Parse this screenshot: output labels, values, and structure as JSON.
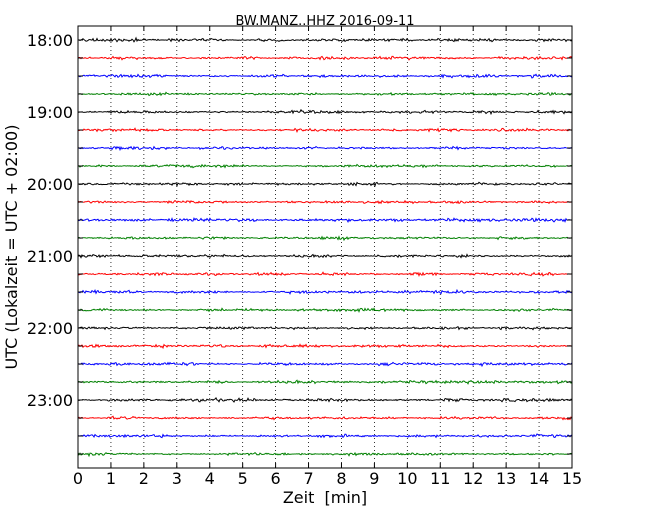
{
  "chart_data": {
    "type": "line",
    "title": "BW.MANZ..HHZ 2016-09-11",
    "xlabel": "Zeit  [min]",
    "ylabel": "UTC (Lokalzeit = UTC + 02:00)",
    "xlim": [
      0,
      15
    ],
    "x_ticks": [
      "0",
      "1",
      "2",
      "3",
      "4",
      "5",
      "6",
      "7",
      "8",
      "9",
      "10",
      "11",
      "12",
      "13",
      "14",
      "15"
    ],
    "y_ticks": [
      "18:00",
      "19:00",
      "20:00",
      "21:00",
      "22:00",
      "23:00"
    ],
    "grid": "vertical-dotted",
    "trace_colors": [
      "#000000",
      "#ff0000",
      "#0000ff",
      "#008000"
    ],
    "rows": [
      {
        "start": "18:00",
        "color": "#000000"
      },
      {
        "start": "18:15",
        "color": "#ff0000"
      },
      {
        "start": "18:30",
        "color": "#0000ff"
      },
      {
        "start": "18:45",
        "color": "#008000"
      },
      {
        "start": "19:00",
        "color": "#000000"
      },
      {
        "start": "19:15",
        "color": "#ff0000"
      },
      {
        "start": "19:30",
        "color": "#0000ff"
      },
      {
        "start": "19:45",
        "color": "#008000"
      },
      {
        "start": "20:00",
        "color": "#000000"
      },
      {
        "start": "20:15",
        "color": "#ff0000"
      },
      {
        "start": "20:30",
        "color": "#0000ff"
      },
      {
        "start": "20:45",
        "color": "#008000"
      },
      {
        "start": "21:00",
        "color": "#000000"
      },
      {
        "start": "21:15",
        "color": "#ff0000"
      },
      {
        "start": "21:30",
        "color": "#0000ff"
      },
      {
        "start": "21:45",
        "color": "#008000"
      },
      {
        "start": "22:00",
        "color": "#000000"
      },
      {
        "start": "22:15",
        "color": "#ff0000"
      },
      {
        "start": "22:30",
        "color": "#0000ff"
      },
      {
        "start": "22:45",
        "color": "#008000"
      },
      {
        "start": "23:00",
        "color": "#000000"
      },
      {
        "start": "23:15",
        "color": "#ff0000"
      },
      {
        "start": "23:30",
        "color": "#0000ff"
      },
      {
        "start": "23:45",
        "color": "#008000"
      }
    ]
  }
}
